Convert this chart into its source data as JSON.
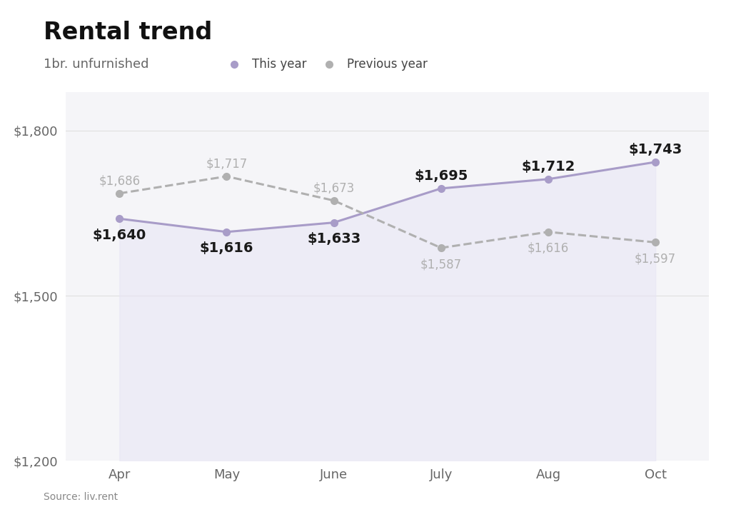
{
  "title": "Rental trend",
  "subtitle": "1br. unfurnished",
  "source": "Source: liv.rent",
  "months": [
    "Apr",
    "May",
    "June",
    "July",
    "Aug",
    "Oct"
  ],
  "this_year": [
    1640,
    1616,
    1633,
    1695,
    1712,
    1743
  ],
  "prev_year": [
    1686,
    1717,
    1673,
    1587,
    1616,
    1597
  ],
  "this_year_color": "#a89cc8",
  "prev_year_color": "#b0b0b0",
  "fill_color": "#e8e5f5",
  "fill_alpha": 0.55,
  "line_width": 2.2,
  "marker_size": 7,
  "ylim_min": 1200,
  "ylim_max": 1870,
  "yticks": [
    1200,
    1500,
    1800
  ],
  "ytick_labels": [
    "$1,200",
    "$1,500",
    "$1,800"
  ],
  "bg_color": "#ffffff",
  "plot_bg_color": "#ffffff",
  "grid_color": "#e0e0e0",
  "col_bg_color": "#f5f5f8",
  "title_fontsize": 24,
  "subtitle_fontsize": 13,
  "legend_fontsize": 12,
  "tick_fontsize": 13,
  "annotation_fontsize_this": 14,
  "annotation_fontsize_prev": 12,
  "legend_this_year": "This year",
  "legend_prev_year": "Previous year",
  "annotation_offset_this": [
    -30,
    -30,
    -30,
    22,
    22,
    22
  ],
  "annotation_offset_prev": [
    22,
    22,
    22,
    -30,
    -30,
    -30
  ]
}
